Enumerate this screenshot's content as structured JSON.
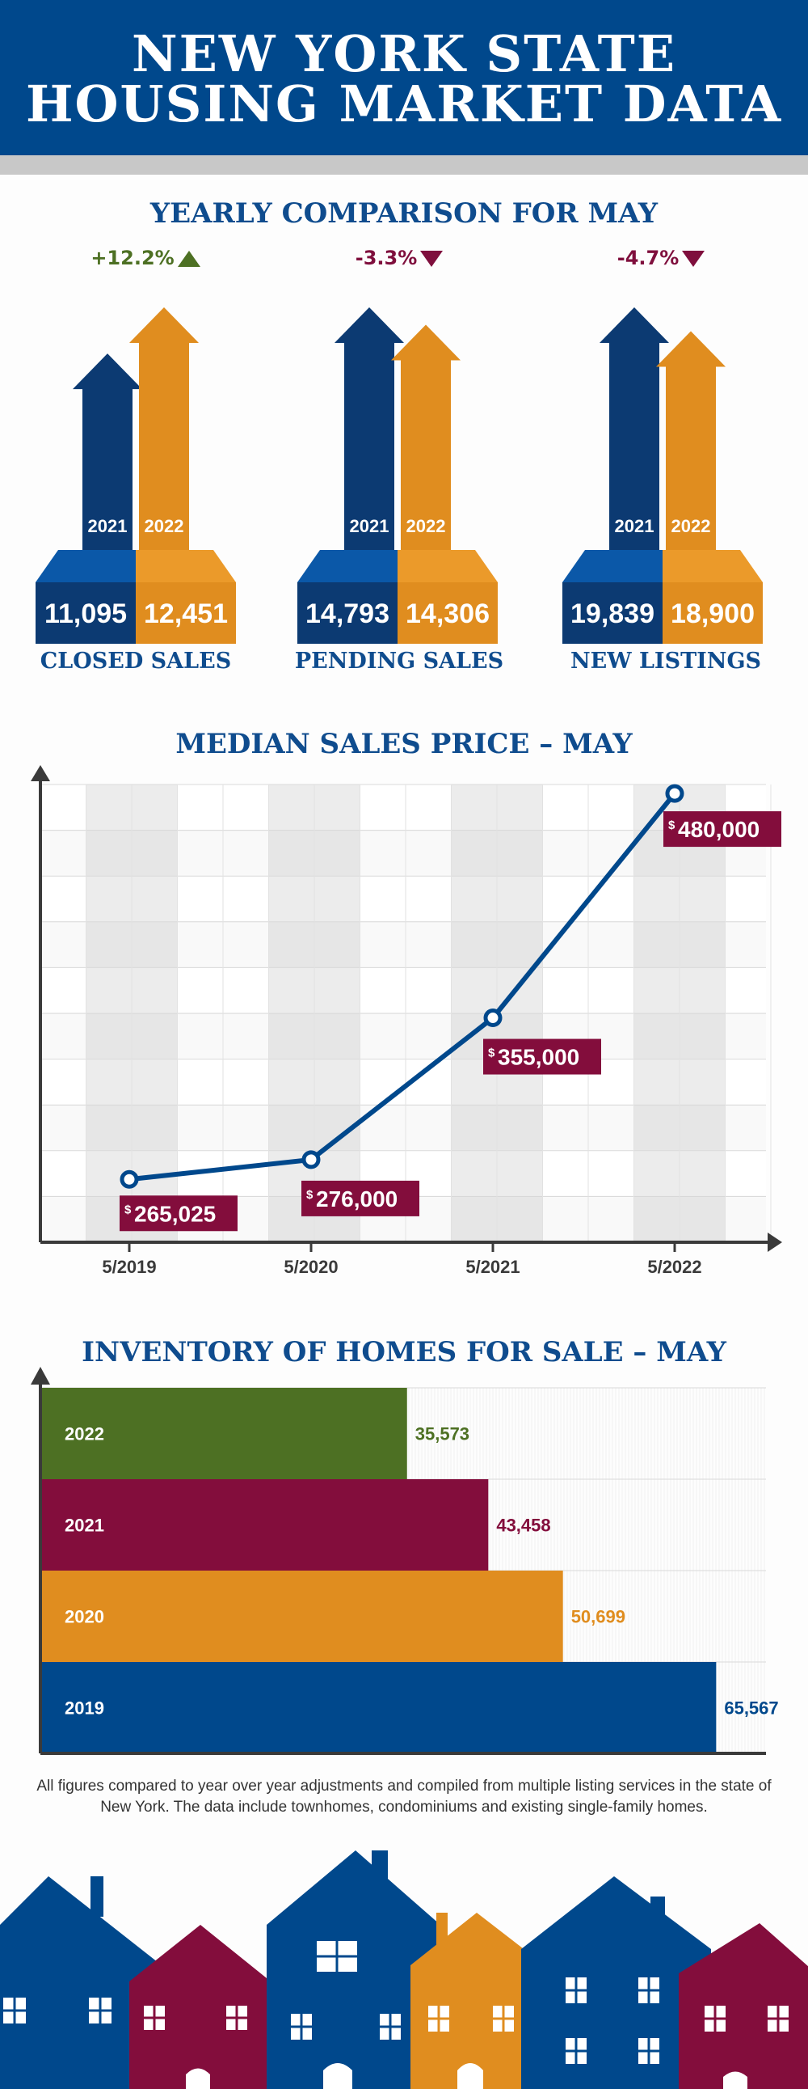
{
  "header": {
    "title_line1": "NEW YORK STATE",
    "title_line2": "HOUSING MARKET DATA"
  },
  "comparison": {
    "title": "YEARLY COMPARISON FOR MAY",
    "groups": [
      {
        "label": "CLOSED SALES",
        "change": "+12.2%",
        "direction": "up",
        "years": [
          "2021",
          "2022"
        ],
        "values": [
          11095,
          12451
        ],
        "value_labels": [
          "11,095",
          "12,451"
        ]
      },
      {
        "label": "PENDING SALES",
        "change": "-3.3%",
        "direction": "down",
        "years": [
          "2021",
          "2022"
        ],
        "values": [
          14793,
          14306
        ],
        "value_labels": [
          "14,793",
          "14,306"
        ]
      },
      {
        "label": "NEW LISTINGS",
        "change": "-4.7%",
        "direction": "down",
        "years": [
          "2021",
          "2022"
        ],
        "values": [
          19839,
          18900
        ],
        "value_labels": [
          "19,839",
          "18,900"
        ]
      }
    ]
  },
  "chart_data": [
    {
      "type": "line",
      "title": "MEDIAN SALES PRICE – MAY",
      "xlabel": "",
      "ylabel": "",
      "categories": [
        "5/2019",
        "5/2020",
        "5/2021",
        "5/2022"
      ],
      "values": [
        265025,
        276000,
        355000,
        480000
      ],
      "value_labels": [
        "265,025",
        "276,000",
        "355,000",
        "480,000"
      ],
      "currency_symbol": "$",
      "ylim": [
        230000,
        485000
      ],
      "grid": true
    },
    {
      "type": "bar",
      "orientation": "horizontal",
      "title": "INVENTORY OF HOMES FOR SALE – MAY",
      "categories": [
        "2022",
        "2021",
        "2020",
        "2019"
      ],
      "values": [
        35573,
        43458,
        50699,
        65567
      ],
      "value_labels": [
        "35,573",
        "43,458",
        "50,699",
        "65,567"
      ],
      "xlim": [
        0,
        70400
      ]
    }
  ],
  "colors": {
    "navy": "#00488c",
    "dark_navy": "#0c3a72",
    "orange": "#e08d1f",
    "maroon": "#830d3c",
    "green": "#4d7023",
    "gray_band": "#c8c8c8"
  },
  "footer": {
    "note": "All figures compared to year over year adjustments and compiled from multiple listing services in the state of New York.  The data include townhomes, condominiums and existing single-family homes."
  }
}
